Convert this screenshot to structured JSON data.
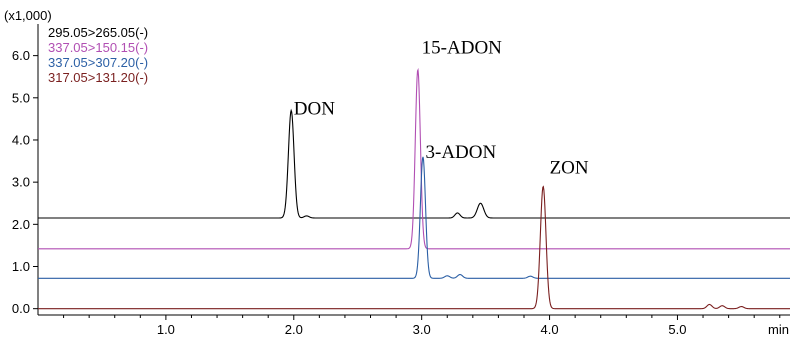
{
  "chart_data": {
    "type": "line",
    "y_multiplier_label": "(x1,000)",
    "x_unit_label": "min",
    "xlim": [
      0,
      5.88
    ],
    "ylim": [
      -0.15,
      6.75
    ],
    "x_ticks": [
      1.0,
      2.0,
      3.0,
      4.0,
      5.0
    ],
    "x_tick_labels": [
      "1.0",
      "2.0",
      "3.0",
      "4.0",
      "5.0"
    ],
    "y_ticks": [
      0.0,
      1.0,
      2.0,
      3.0,
      4.0,
      5.0,
      6.0
    ],
    "y_tick_labels": [
      "0.0",
      "1.0",
      "2.0",
      "3.0",
      "4.0",
      "5.0",
      "6.0"
    ],
    "legend_position": "top-left",
    "series": [
      {
        "name": "295.05>265.05(-)",
        "color": "#000000",
        "baseline": 2.15,
        "peaks": [
          {
            "x": 1.98,
            "height": 2.55,
            "sigma": 0.022
          },
          {
            "x": 2.1,
            "height": 0.05,
            "sigma": 0.02
          },
          {
            "x": 3.28,
            "height": 0.12,
            "sigma": 0.02
          },
          {
            "x": 3.46,
            "height": 0.35,
            "sigma": 0.025
          }
        ]
      },
      {
        "name": "337.05>150.15(-)",
        "color": "#b14fb3",
        "baseline": 1.42,
        "peaks": [
          {
            "x": 2.97,
            "height": 4.25,
            "sigma": 0.02
          }
        ]
      },
      {
        "name": "337.05>307.20(-)",
        "color": "#2b5fa5",
        "baseline": 0.72,
        "peaks": [
          {
            "x": 3.01,
            "height": 2.88,
            "sigma": 0.02
          },
          {
            "x": 3.2,
            "height": 0.06,
            "sigma": 0.02
          },
          {
            "x": 3.3,
            "height": 0.09,
            "sigma": 0.02
          },
          {
            "x": 3.85,
            "height": 0.05,
            "sigma": 0.02
          }
        ]
      },
      {
        "name": "317.05>131.20(-)",
        "color": "#7a1f1f",
        "baseline": 0.0,
        "peaks": [
          {
            "x": 3.95,
            "height": 2.9,
            "sigma": 0.022
          },
          {
            "x": 5.25,
            "height": 0.1,
            "sigma": 0.02
          },
          {
            "x": 5.35,
            "height": 0.07,
            "sigma": 0.02
          },
          {
            "x": 5.5,
            "height": 0.05,
            "sigma": 0.02
          }
        ]
      }
    ],
    "annotations": [
      {
        "text": "DON",
        "x": 2.0,
        "y": 4.6
      },
      {
        "text": "15-ADON",
        "x": 3.0,
        "y": 6.05
      },
      {
        "text": "3-ADON",
        "x": 3.03,
        "y": 3.57
      },
      {
        "text": "ZON",
        "x": 4.0,
        "y": 3.2
      }
    ]
  }
}
